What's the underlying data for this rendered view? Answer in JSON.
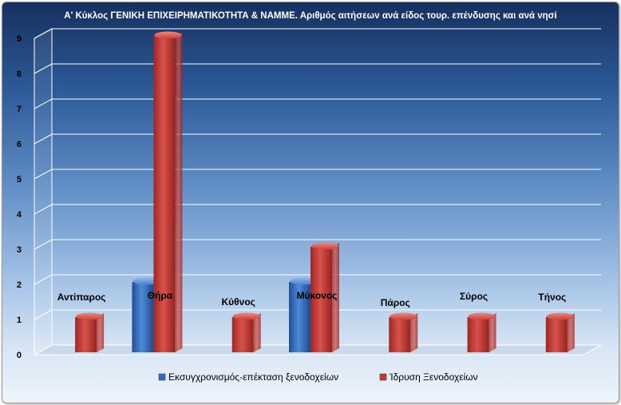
{
  "chart_data": {
    "type": "bar",
    "title": "Α' Κύκλος ΓΕΝΙΚΗ ΕΠΙΧΕΙΡΗΜΑΤΙΚΟΤΗΤΑ & ΝΑΜΜΕ. Αριθμός αιτήσεων ανά είδος τουρ. επένδυσης και ανά νησί",
    "categories": [
      "Αντίπαρος",
      "Θήρα",
      "Κύθνος",
      "Μύκονος",
      "Πάρος",
      "Σύρος",
      "Τήνος"
    ],
    "series": [
      {
        "name": "Εκσυγχρονισμός-επέκταση ξενοδοχείων",
        "color": "#2f6bbf",
        "values": [
          0,
          2,
          0,
          2,
          0,
          0,
          0
        ]
      },
      {
        "name": "Ίδρυση Ξενοδοχείων",
        "color": "#c23a35",
        "values": [
          1,
          9,
          1,
          3,
          1,
          1,
          1
        ]
      }
    ],
    "ylim": [
      0,
      9
    ],
    "yticks": [
      "0",
      "1",
      "2",
      "3",
      "4",
      "5",
      "6",
      "7",
      "8",
      "9"
    ],
    "grid": true,
    "legend_position": "bottom",
    "style": "3d-column"
  }
}
